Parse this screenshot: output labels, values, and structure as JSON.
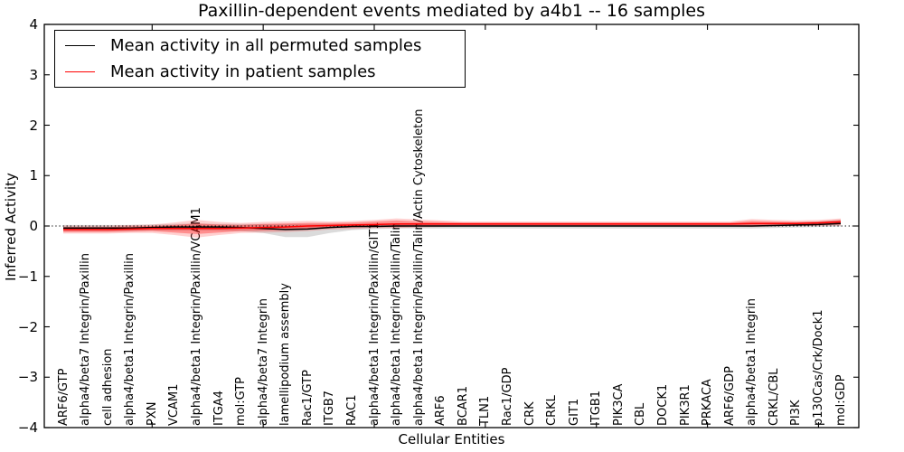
{
  "title": "Paxillin-dependent events mediated by a4b1 -- 16 samples",
  "legend": {
    "items": [
      {
        "label": "Mean activity in all permuted samples",
        "color": "#000000"
      },
      {
        "label": "Mean activity in patient samples",
        "color": "#ff0000"
      }
    ]
  },
  "axes": {
    "ylabel": "Inferred Activity",
    "xlabel": "Cellular Entities",
    "ytick_labels": [
      "4",
      "3",
      "2",
      "1",
      "0",
      "−1",
      "−2",
      "−3",
      "−4"
    ]
  },
  "chart_data": {
    "type": "line",
    "title": "Paxillin-dependent events mediated by a4b1 -- 16 samples",
    "xlabel": "Cellular Entities",
    "ylabel": "Inferred Activity",
    "ylim": [
      -4,
      4
    ],
    "yticks": [
      4,
      3,
      2,
      1,
      0,
      -1,
      -2,
      -3,
      -4
    ],
    "x_major_tick_indices": [
      4,
      9,
      14,
      19,
      24,
      29,
      34
    ],
    "zero_line": 0,
    "legend_position": "upper left",
    "grid": false,
    "categories": [
      "ARF6/GTP",
      "alpha4/beta7 Integrin/Paxillin",
      "cell adhesion",
      "alpha4/beta1 Integrin/Paxillin",
      "PXN",
      "VCAM1",
      "alpha4/beta1 Integrin/Paxillin/VCAM1",
      "ITGA4",
      "mol:GTP",
      "alpha4/beta7 Integrin",
      "lamellipodium assembly",
      "Rac1/GTP",
      "ITGB7",
      "RAC1",
      "alpha4/beta1 Integrin/Paxillin/GIT1",
      "alpha4/beta1 Integrin/Paxillin/Talin",
      "alpha4/beta1 Integrin/Paxillin/Talin/Actin Cytoskeleton",
      "ARF6",
      "BCAR1",
      "TLN1",
      "Rac1/GDP",
      "CRK",
      "CRKL",
      "GIT1",
      "ITGB1",
      "PIK3CA",
      "CBL",
      "DOCK1",
      "PIK3R1",
      "PRKACA",
      "ARF6/GDP",
      "alpha4/beta1 Integrin",
      "CRKL/CBL",
      "PI3K",
      "p130Cas/Crk/Dock1",
      "mol:GDP"
    ],
    "series": [
      {
        "name": "Mean activity in all permuted samples",
        "color": "#000000",
        "values": [
          -0.04,
          -0.04,
          -0.04,
          -0.04,
          -0.03,
          -0.02,
          -0.02,
          -0.02,
          -0.03,
          -0.05,
          -0.07,
          -0.06,
          -0.03,
          -0.01,
          -0.01,
          0,
          0,
          0,
          0,
          0,
          0,
          0,
          0,
          0,
          0,
          0,
          0,
          0,
          0,
          0,
          0,
          0,
          0.01,
          0.02,
          0.03,
          0.05
        ]
      },
      {
        "name": "Mean activity in patient samples",
        "color": "#ff0000",
        "values": [
          -0.07,
          -0.07,
          -0.07,
          -0.06,
          -0.05,
          -0.05,
          -0.05,
          -0.05,
          -0.04,
          -0.03,
          -0.02,
          0.0,
          0.01,
          0.02,
          0.03,
          0.04,
          0.04,
          0.04,
          0.04,
          0.04,
          0.04,
          0.04,
          0.04,
          0.04,
          0.04,
          0.04,
          0.04,
          0.04,
          0.04,
          0.04,
          0.04,
          0.05,
          0.05,
          0.05,
          0.06,
          0.08
        ]
      }
    ],
    "bands": [
      {
        "name": "permuted-samples-range",
        "color": "rgba(0,0,0,0.14)",
        "lower": [
          -0.1,
          -0.1,
          -0.1,
          -0.1,
          -0.09,
          -0.09,
          -0.09,
          -0.09,
          -0.1,
          -0.14,
          -0.22,
          -0.22,
          -0.14,
          -0.08,
          -0.06,
          -0.05,
          -0.05,
          -0.05,
          -0.05,
          -0.05,
          -0.05,
          -0.05,
          -0.05,
          -0.05,
          -0.05,
          -0.05,
          -0.05,
          -0.05,
          -0.05,
          -0.05,
          -0.05,
          -0.05,
          -0.04,
          -0.03,
          -0.02,
          -0.01
        ],
        "upper": [
          0.02,
          0.02,
          0.02,
          0.02,
          0.03,
          0.04,
          0.05,
          0.04,
          0.04,
          0.04,
          0.04,
          0.04,
          0.04,
          0.04,
          0.04,
          0.04,
          0.04,
          0.04,
          0.04,
          0.04,
          0.04,
          0.04,
          0.04,
          0.04,
          0.04,
          0.04,
          0.04,
          0.04,
          0.04,
          0.04,
          0.04,
          0.05,
          0.06,
          0.07,
          0.09,
          0.12
        ]
      },
      {
        "name": "patient-samples-outer-band",
        "color": "rgba(255,0,0,0.18)",
        "lower": [
          -0.15,
          -0.15,
          -0.15,
          -0.14,
          -0.14,
          -0.18,
          -0.23,
          -0.18,
          -0.14,
          -0.13,
          -0.12,
          -0.1,
          -0.07,
          -0.06,
          -0.04,
          -0.04,
          -0.03,
          -0.02,
          -0.01,
          -0.01,
          -0.01,
          -0.01,
          -0.01,
          -0.01,
          -0.01,
          -0.01,
          -0.01,
          -0.01,
          -0.01,
          -0.01,
          -0.01,
          -0.02,
          -0.01,
          0.0,
          0.0,
          0.01
        ],
        "upper": [
          0.01,
          0.01,
          0.01,
          0.02,
          0.03,
          0.07,
          0.12,
          0.08,
          0.06,
          0.08,
          0.09,
          0.1,
          0.09,
          0.1,
          0.12,
          0.15,
          0.13,
          0.11,
          0.09,
          0.09,
          0.09,
          0.09,
          0.09,
          0.09,
          0.09,
          0.09,
          0.09,
          0.09,
          0.09,
          0.09,
          0.09,
          0.14,
          0.12,
          0.11,
          0.12,
          0.15
        ]
      },
      {
        "name": "patient-samples-inner-band",
        "color": "rgba(255,0,0,0.32)",
        "lower": [
          -0.12,
          -0.12,
          -0.12,
          -0.11,
          -0.1,
          -0.13,
          -0.16,
          -0.13,
          -0.1,
          -0.09,
          -0.08,
          -0.06,
          -0.04,
          -0.03,
          -0.02,
          -0.02,
          -0.01,
          0.0,
          0.01,
          0.01,
          0.01,
          0.01,
          0.01,
          0.01,
          0.01,
          0.01,
          0.01,
          0.01,
          0.01,
          0.01,
          0.01,
          0.0,
          0.01,
          0.02,
          0.02,
          0.03
        ],
        "upper": [
          -0.02,
          -0.02,
          -0.02,
          -0.01,
          0.0,
          0.02,
          0.05,
          0.03,
          0.02,
          0.04,
          0.05,
          0.06,
          0.06,
          0.07,
          0.09,
          0.11,
          0.09,
          0.08,
          0.07,
          0.07,
          0.07,
          0.07,
          0.07,
          0.07,
          0.07,
          0.07,
          0.07,
          0.07,
          0.07,
          0.07,
          0.07,
          0.1,
          0.09,
          0.08,
          0.09,
          0.12
        ]
      }
    ]
  }
}
